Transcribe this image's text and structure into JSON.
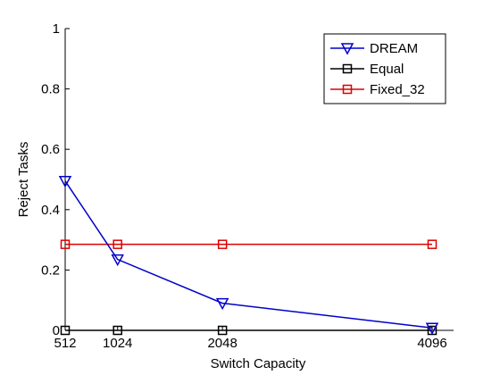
{
  "chart_data": {
    "type": "line",
    "xlabel": "Switch Capacity",
    "ylabel": "Reject Tasks",
    "x_ticks": [
      "512",
      "1024",
      "2048",
      "4096"
    ],
    "y_ticks": [
      "0",
      "0.2",
      "0.4",
      "0.6",
      "0.8",
      "1"
    ],
    "xlim": [
      512,
      4096
    ],
    "ylim": [
      0,
      1
    ],
    "grid": false,
    "legend_position": "top-right",
    "series": [
      {
        "name": "DREAM",
        "color": "#0000cc",
        "marker": "triangle-down",
        "x": [
          512,
          1024,
          2048,
          4096
        ],
        "y": [
          0.495,
          0.235,
          0.09,
          0.008
        ]
      },
      {
        "name": "Equal",
        "color": "#000000",
        "marker": "square",
        "x": [
          512,
          1024,
          2048,
          4096
        ],
        "y": [
          0,
          0,
          0,
          0
        ]
      },
      {
        "name": "Fixed_32",
        "color": "#dd0000",
        "marker": "square",
        "x": [
          512,
          1024,
          2048,
          4096
        ],
        "y": [
          0.285,
          0.285,
          0.285,
          0.285
        ]
      }
    ]
  }
}
